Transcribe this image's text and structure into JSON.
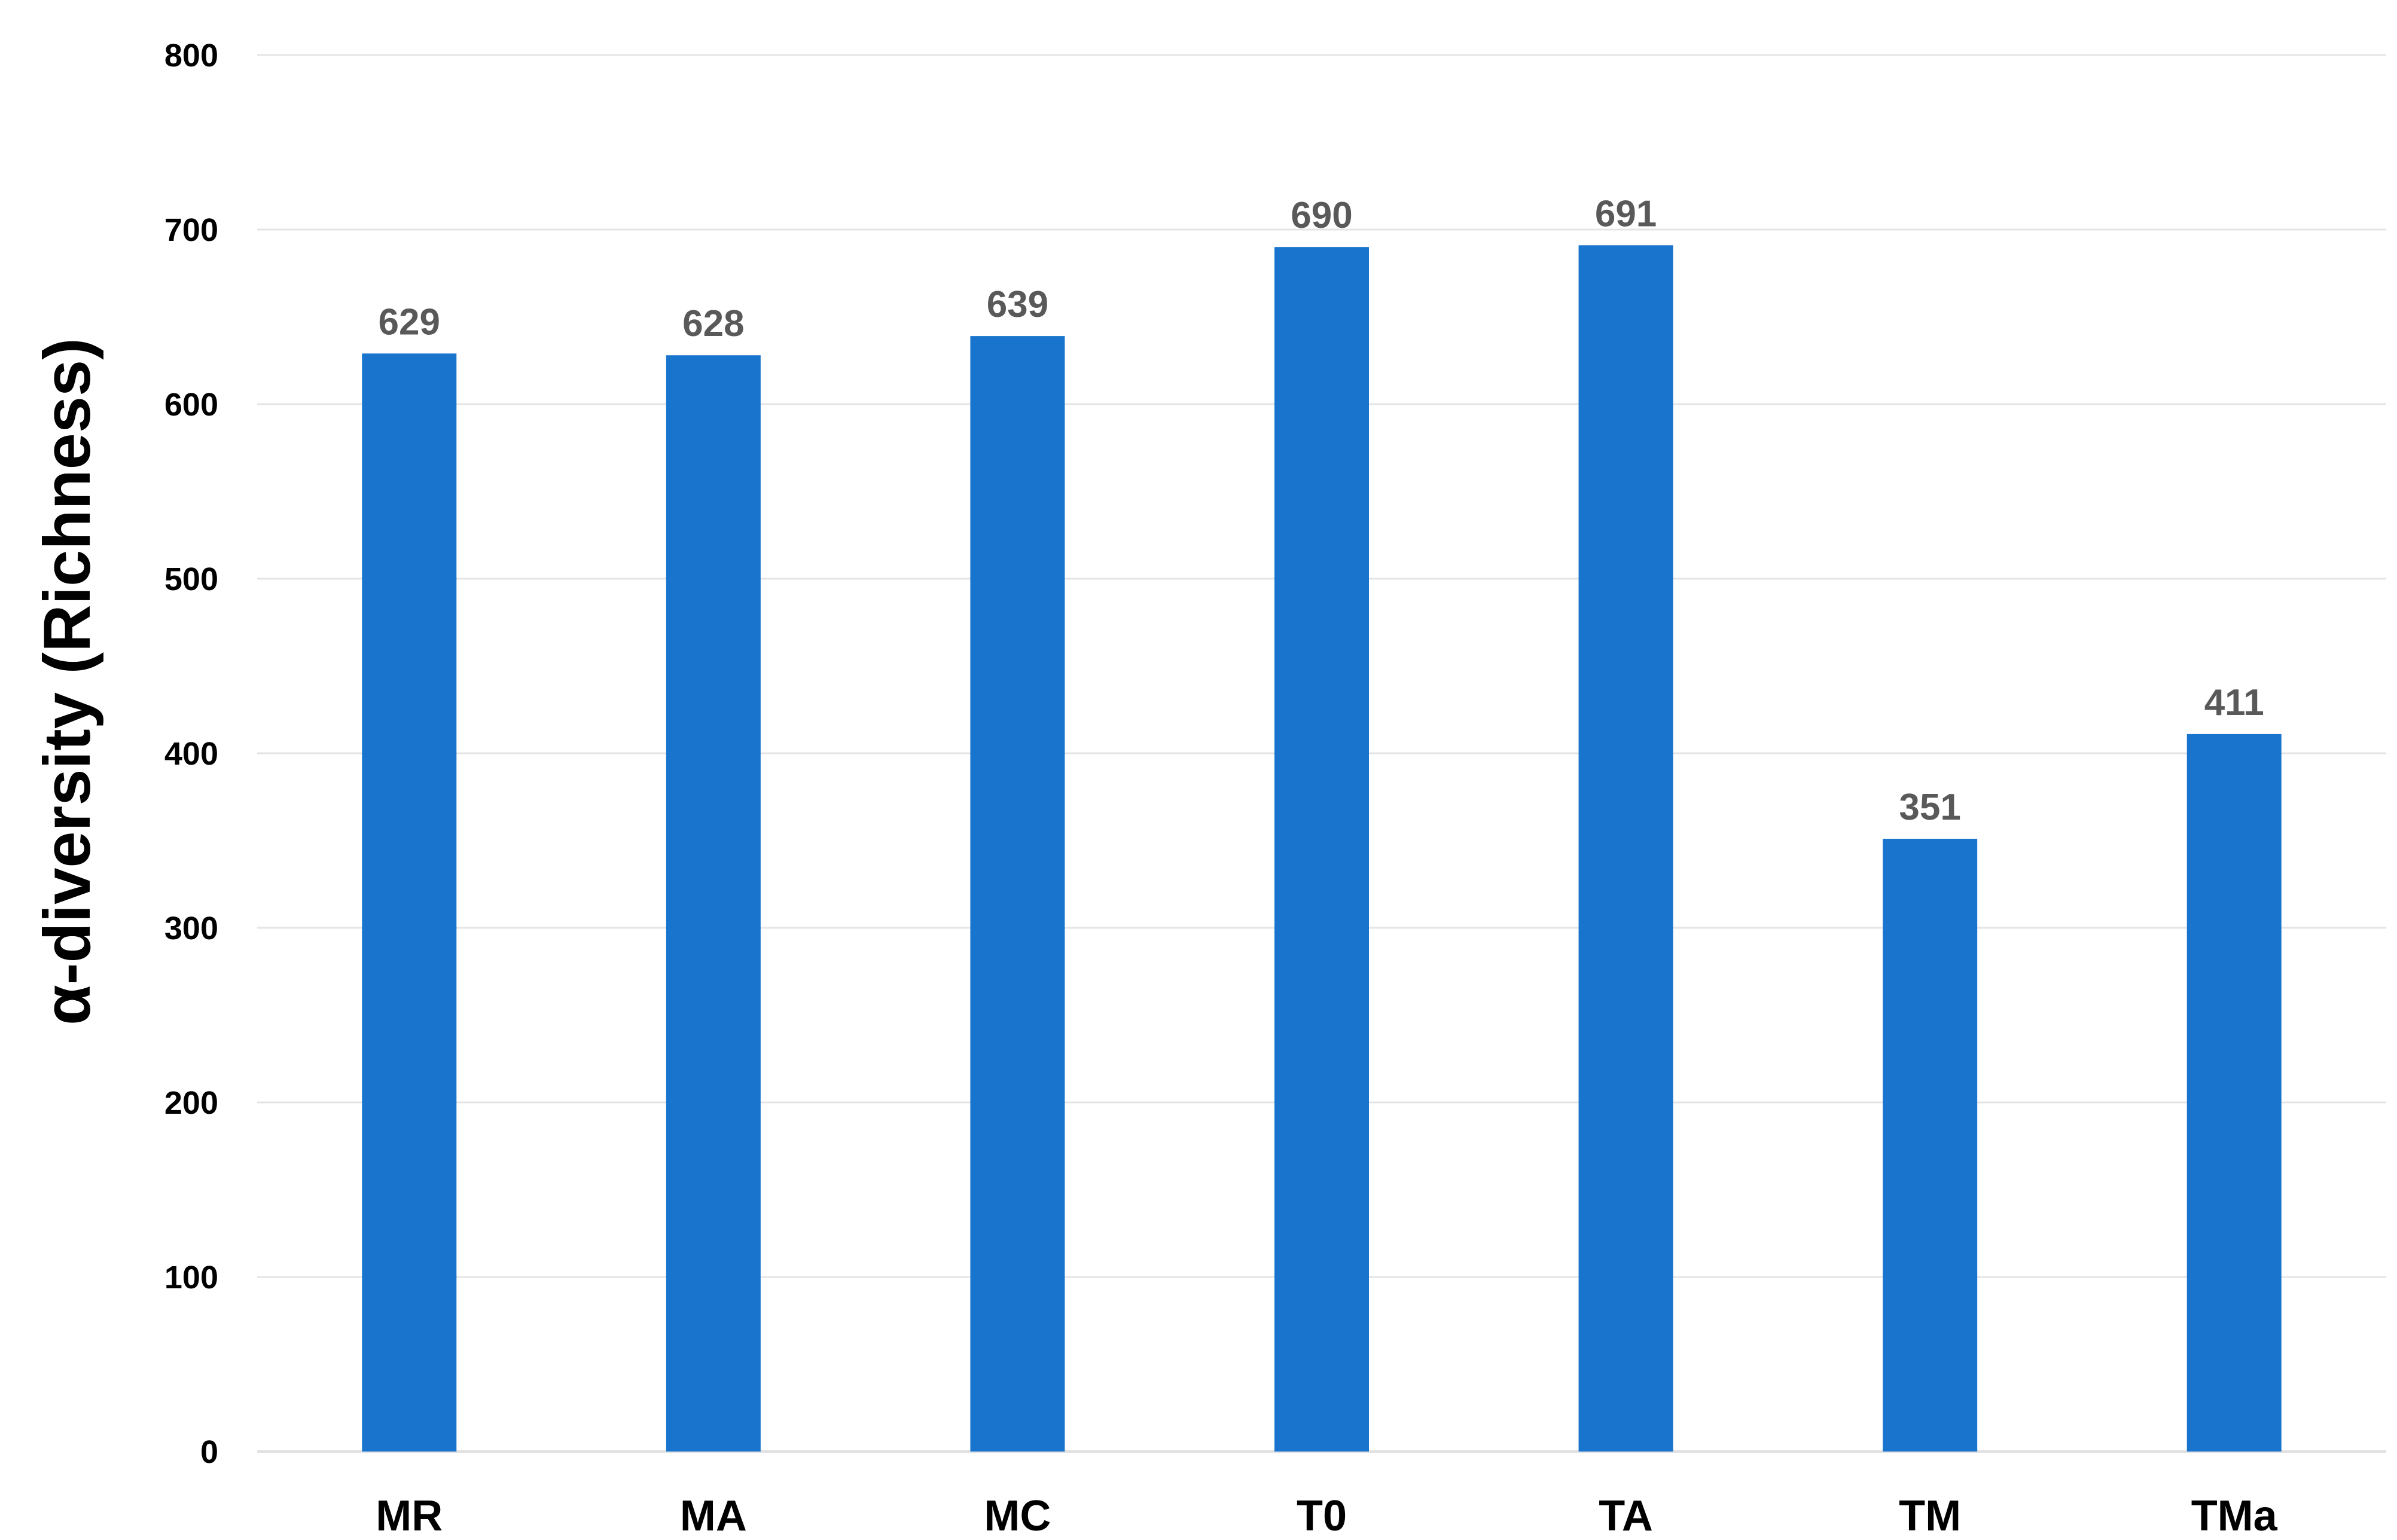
{
  "chart_data": {
    "type": "bar",
    "categories": [
      "MR",
      "MA",
      "MC",
      "T0",
      "TA",
      "TM",
      "TMa"
    ],
    "values": [
      629,
      628,
      639,
      690,
      691,
      351,
      411
    ],
    "data_labels": [
      "629",
      "628",
      "639",
      "690",
      "691",
      "351",
      "411"
    ],
    "title": "",
    "xlabel": "",
    "ylabel": "α-diversity (Richness)",
    "ylim": [
      0,
      800
    ],
    "yticks": [
      0,
      100,
      200,
      300,
      400,
      500,
      600,
      700,
      800
    ],
    "grid": true,
    "legend": "none",
    "bar_color": "#1874CD"
  }
}
